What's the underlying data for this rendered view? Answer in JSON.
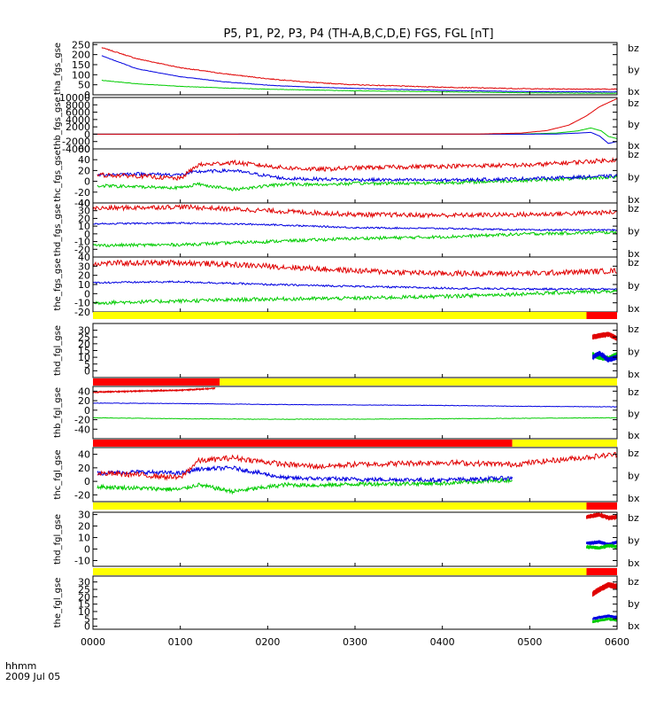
{
  "title": "P5, P1, P2, P3, P4 (TH-A,B,C,D,E) FGS, FGL [nT]",
  "footer": {
    "line1": "hhmm",
    "line2": "2009 Jul 05"
  },
  "x_axis": {
    "ticks": [
      "0000",
      "0100",
      "0200",
      "0300",
      "0400",
      "0500",
      "0600"
    ],
    "range_hours": [
      0,
      6
    ]
  },
  "colors": {
    "bz": "#e00000",
    "by": "#00cc00",
    "bx": "#0000e0",
    "flag_yellow": "#ffff00",
    "flag_red": "#ff0000"
  },
  "chart_data": [
    {
      "type": "line",
      "ylabel": "tha_fgs_gse",
      "ylim": [
        0,
        260
      ],
      "yticks": [
        0,
        50,
        100,
        150,
        200,
        250
      ],
      "labels": [
        "bz",
        "by",
        "bx"
      ],
      "series": [
        {
          "name": "bz",
          "x": [
            0.1,
            0.5,
            1,
            1.5,
            2,
            2.5,
            3,
            4,
            5,
            6
          ],
          "y": [
            235,
            180,
            135,
            105,
            80,
            62,
            50,
            38,
            30,
            28
          ],
          "noise": 2
        },
        {
          "name": "bx",
          "x": [
            0.1,
            0.5,
            1,
            1.5,
            2,
            2.5,
            3,
            4,
            5,
            6
          ],
          "y": [
            195,
            130,
            90,
            65,
            48,
            38,
            32,
            22,
            16,
            14
          ],
          "noise": 1
        },
        {
          "name": "by",
          "x": [
            0.1,
            0.5,
            1,
            1.5,
            2,
            2.5,
            3,
            4,
            5,
            6
          ],
          "y": [
            72,
            55,
            42,
            34,
            28,
            24,
            20,
            15,
            10,
            8
          ],
          "noise": 1
        }
      ]
    },
    {
      "type": "line",
      "ylabel": "thb_fgs_gse",
      "ylim": [
        -4000,
        10000
      ],
      "yticks": [
        -4000,
        -2000,
        0,
        2000,
        4000,
        6000,
        8000,
        10000
      ],
      "labels": [
        "bz",
        "by",
        "bx"
      ],
      "series": [
        {
          "name": "by",
          "x": [
            0,
            4.4,
            4.9,
            5.3,
            5.55,
            5.7,
            5.82,
            5.9,
            6
          ],
          "y": [
            0,
            10,
            40,
            300,
            900,
            1700,
            900,
            -600,
            -1200
          ],
          "noise": 0
        },
        {
          "name": "bx",
          "x": [
            0,
            4.4,
            4.9,
            5.3,
            5.55,
            5.7,
            5.8,
            5.9,
            6
          ],
          "y": [
            0,
            0,
            0,
            50,
            300,
            500,
            -500,
            -2500,
            -2000
          ],
          "noise": 0
        },
        {
          "name": "bz",
          "x": [
            0,
            4.4,
            4.9,
            5.2,
            5.45,
            5.65,
            5.8,
            6
          ],
          "y": [
            0,
            50,
            300,
            1000,
            2500,
            5000,
            7500,
            9700
          ],
          "noise": 0
        }
      ]
    },
    {
      "type": "line",
      "ylabel": "thc_fgs_gse",
      "ylim": [
        -40,
        60
      ],
      "yticks": [
        -40,
        -20,
        0,
        20,
        40,
        60
      ],
      "labels": [
        "bz",
        "by",
        "bx"
      ],
      "series": [
        {
          "name": "by",
          "x": [
            0.05,
            0.5,
            1.0,
            1.2,
            1.6,
            2.2,
            2.6,
            3,
            4,
            5,
            6
          ],
          "y": [
            -8,
            -10,
            -12,
            -5,
            -15,
            -5,
            -6,
            -4,
            -3,
            2,
            8
          ],
          "noise": 3
        },
        {
          "name": "bx",
          "x": [
            0.05,
            0.5,
            1.0,
            1.2,
            1.6,
            2.2,
            2.6,
            3,
            4,
            5,
            6
          ],
          "y": [
            12,
            14,
            12,
            18,
            20,
            5,
            4,
            3,
            2,
            5,
            10
          ],
          "noise": 3
        },
        {
          "name": "bz",
          "x": [
            0.05,
            0.5,
            1.0,
            1.2,
            1.6,
            2.2,
            2.6,
            3,
            4,
            5,
            6
          ],
          "y": [
            12,
            10,
            5,
            30,
            35,
            25,
            22,
            25,
            28,
            30,
            40
          ],
          "noise": 4
        }
      ]
    },
    {
      "type": "line",
      "ylabel": "thd_fgs_gse",
      "ylim": [
        -30,
        40
      ],
      "yticks": [
        -20,
        -10,
        0,
        10,
        20,
        30,
        40
      ],
      "labels": [
        "bz",
        "by",
        "bx"
      ],
      "series": [
        {
          "name": "by",
          "x": [
            0,
            1,
            2,
            3,
            4,
            5,
            6
          ],
          "y": [
            -15,
            -14,
            -10,
            -6,
            -4,
            0,
            2
          ],
          "noise": 2
        },
        {
          "name": "bx",
          "x": [
            0,
            1,
            2,
            3,
            4,
            5,
            6
          ],
          "y": [
            13,
            14,
            12,
            8,
            7,
            5,
            5
          ],
          "noise": 1
        },
        {
          "name": "bz",
          "x": [
            0,
            1,
            2,
            3,
            4,
            5,
            6
          ],
          "y": [
            33,
            35,
            30,
            25,
            24,
            25,
            28
          ],
          "noise": 3
        }
      ]
    },
    {
      "type": "line",
      "ylabel": "the_fgs_gse",
      "ylim": [
        -20,
        40
      ],
      "yticks": [
        -20,
        -10,
        0,
        10,
        20,
        30,
        40
      ],
      "labels": [
        "bz",
        "by",
        "bx"
      ],
      "series": [
        {
          "name": "by",
          "x": [
            0,
            1,
            2,
            3,
            4,
            5,
            6
          ],
          "y": [
            -10,
            -8,
            -6,
            -5,
            -3,
            0,
            3
          ],
          "noise": 2
        },
        {
          "name": "bx",
          "x": [
            0,
            1,
            2,
            3,
            4,
            5,
            6
          ],
          "y": [
            12,
            13,
            10,
            8,
            6,
            5,
            5
          ],
          "noise": 1
        },
        {
          "name": "bz",
          "x": [
            0,
            1,
            2,
            3,
            4,
            5,
            6
          ],
          "y": [
            33,
            34,
            30,
            25,
            22,
            22,
            25
          ],
          "noise": 3
        }
      ]
    },
    {
      "type": "line",
      "ylabel": "thd_fgl_gse",
      "ylim": [
        -5,
        35
      ],
      "yticks": [
        0,
        5,
        10,
        15,
        20,
        25,
        30
      ],
      "labels": [
        "bz",
        "by",
        "bx"
      ],
      "series": [
        {
          "name": "bz",
          "x": [
            5.72,
            5.8,
            5.9,
            6
          ],
          "y": [
            25,
            26,
            27,
            24
          ],
          "noise": 2
        },
        {
          "name": "by",
          "x": [
            5.72,
            5.8,
            5.9,
            6
          ],
          "y": [
            12,
            10,
            9,
            12
          ],
          "noise": 2
        },
        {
          "name": "bx",
          "x": [
            5.72,
            5.8,
            5.9,
            6
          ],
          "y": [
            10,
            13,
            8,
            10
          ],
          "noise": 2
        }
      ]
    },
    {
      "type": "line",
      "ylabel": "thb_fgl_gse",
      "ylim": [
        -60,
        50
      ],
      "yticks": [
        -40,
        -20,
        0,
        20,
        40
      ],
      "labels": [
        "bz",
        "by",
        "bx"
      ],
      "series": [
        {
          "name": "bz",
          "x": [
            0,
            0.5,
            1.0,
            1.4
          ],
          "y": [
            38,
            40,
            42,
            46
          ],
          "noise": 1
        },
        {
          "name": "bx",
          "x": [
            0,
            1,
            2,
            3,
            4,
            5,
            6
          ],
          "y": [
            15,
            14,
            12,
            11,
            10,
            8,
            7
          ],
          "noise": 0.5
        },
        {
          "name": "by",
          "x": [
            0,
            1,
            2,
            3,
            4,
            5,
            6
          ],
          "y": [
            -16,
            -18,
            -19,
            -19,
            -18,
            -17,
            -16
          ],
          "noise": 0.5
        }
      ]
    },
    {
      "type": "line",
      "ylabel": "thc_fgl_gse",
      "ylim": [
        -30,
        50
      ],
      "yticks": [
        -20,
        0,
        20,
        40
      ],
      "labels": [
        "bz",
        "by",
        "bx"
      ],
      "series": [
        {
          "name": "by",
          "x": [
            0.05,
            0.5,
            1.0,
            1.2,
            1.6,
            2.2,
            2.6,
            3,
            4,
            4.8
          ],
          "y": [
            -8,
            -10,
            -12,
            -5,
            -15,
            -5,
            -6,
            -4,
            -3,
            2
          ],
          "noise": 3
        },
        {
          "name": "bx",
          "x": [
            0.05,
            0.5,
            1.0,
            1.2,
            1.6,
            2.2,
            2.6,
            3,
            4,
            4.8
          ],
          "y": [
            12,
            14,
            12,
            18,
            20,
            5,
            4,
            3,
            2,
            5
          ],
          "noise": 3
        },
        {
          "name": "bz",
          "x": [
            0.05,
            0.5,
            1.0,
            1.2,
            1.6,
            2.2,
            2.6,
            3,
            4,
            4.8,
            6
          ],
          "y": [
            12,
            10,
            5,
            30,
            35,
            25,
            22,
            25,
            28,
            25,
            40
          ],
          "noise": 4
        }
      ]
    },
    {
      "type": "line",
      "ylabel": "thd_fgl_gse",
      "ylim": [
        -15,
        32
      ],
      "yticks": [
        -10,
        0,
        10,
        20,
        30
      ],
      "labels": [
        "bz",
        "by",
        "bx"
      ],
      "series": [
        {
          "name": "bz",
          "x": [
            5.65,
            5.8,
            5.9,
            6
          ],
          "y": [
            28,
            30,
            27,
            28
          ],
          "noise": 2
        },
        {
          "name": "bx",
          "x": [
            5.65,
            5.8,
            5.9,
            6
          ],
          "y": [
            5,
            6,
            4,
            6
          ],
          "noise": 1.5
        },
        {
          "name": "by",
          "x": [
            5.65,
            5.8,
            5.9,
            6
          ],
          "y": [
            2,
            1,
            3,
            2
          ],
          "noise": 1.5
        }
      ]
    },
    {
      "type": "line",
      "ylabel": "the_fgl_gse",
      "ylim": [
        -2,
        34
      ],
      "yticks": [
        0,
        5,
        10,
        15,
        20,
        25,
        30
      ],
      "labels": [
        "bz",
        "by",
        "bx"
      ],
      "series": [
        {
          "name": "bz",
          "x": [
            5.72,
            5.8,
            5.9,
            6
          ],
          "y": [
            22,
            25,
            28,
            27
          ],
          "noise": 2
        },
        {
          "name": "bx",
          "x": [
            5.72,
            5.8,
            5.9,
            6
          ],
          "y": [
            5,
            6,
            7,
            6
          ],
          "noise": 1
        },
        {
          "name": "by",
          "x": [
            5.72,
            5.8,
            5.9,
            6
          ],
          "y": [
            3,
            4,
            5,
            4
          ],
          "noise": 1
        }
      ]
    }
  ],
  "flag_bars": [
    {
      "segments": [
        {
          "from": 0,
          "to": 5.65,
          "color": "yellow"
        },
        {
          "from": 5.65,
          "to": 6,
          "color": "red"
        }
      ]
    },
    {
      "segments": [
        {
          "from": 0,
          "to": 1.45,
          "color": "red"
        },
        {
          "from": 1.45,
          "to": 6,
          "color": "yellow"
        }
      ]
    },
    {
      "segments": [
        {
          "from": 0,
          "to": 4.8,
          "color": "red"
        },
        {
          "from": 4.8,
          "to": 6,
          "color": "yellow"
        }
      ]
    },
    {
      "segments": [
        {
          "from": 0,
          "to": 5.65,
          "color": "yellow"
        },
        {
          "from": 5.65,
          "to": 6,
          "color": "red"
        }
      ]
    },
    {
      "segments": [
        {
          "from": 0,
          "to": 5.65,
          "color": "yellow"
        },
        {
          "from": 5.65,
          "to": 6,
          "color": "red"
        }
      ]
    }
  ]
}
